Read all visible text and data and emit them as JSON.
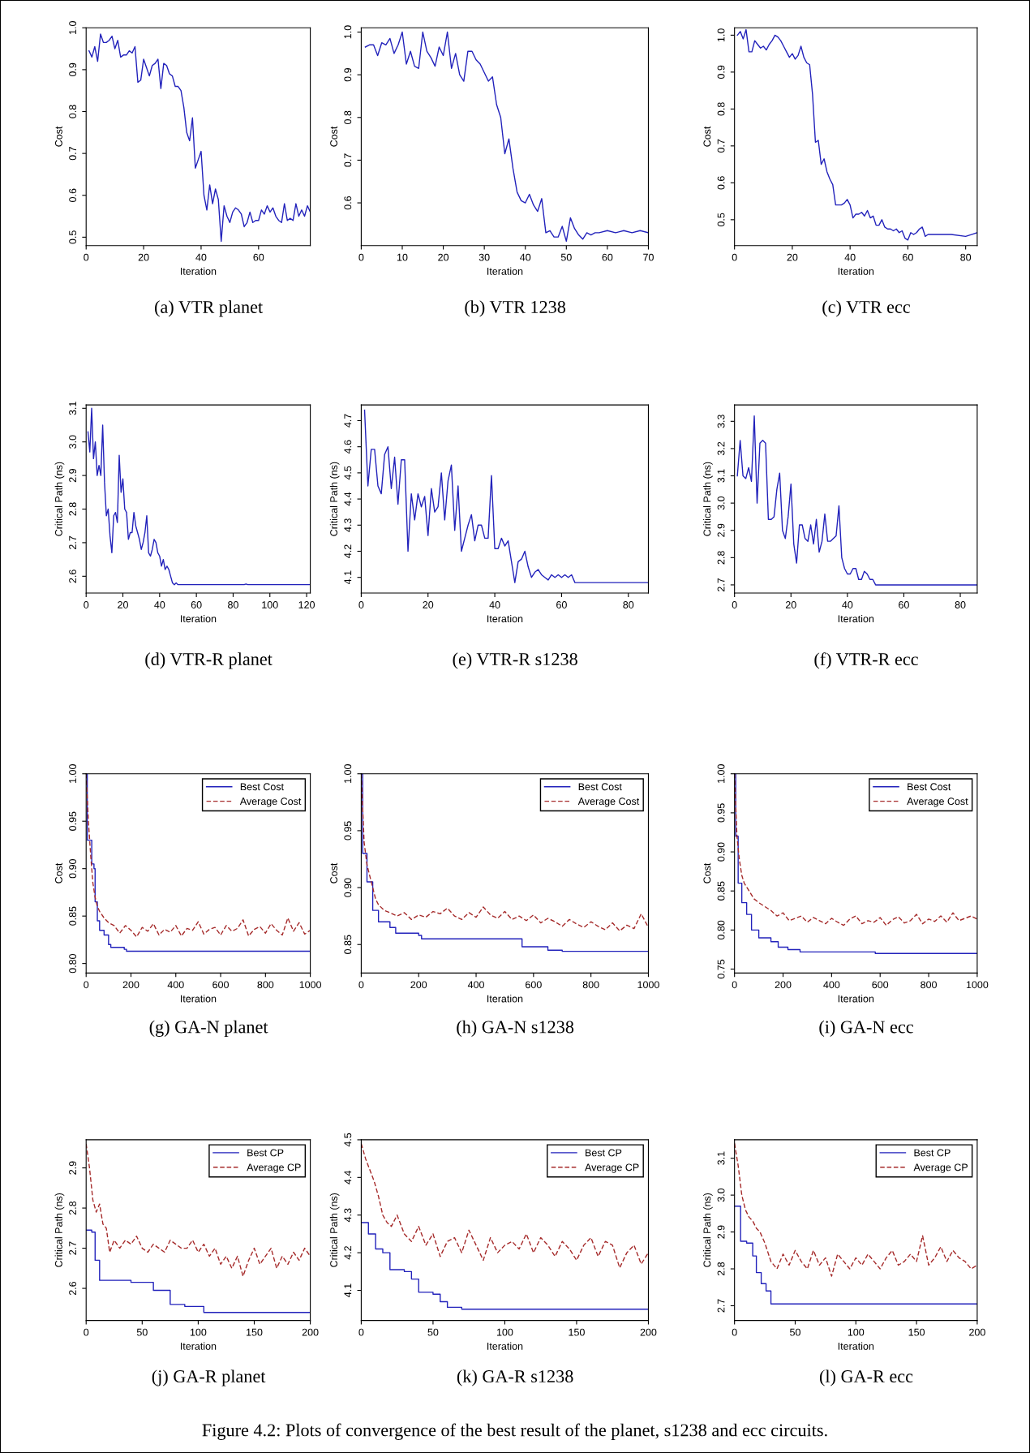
{
  "chart_data": [
    {
      "type": "line",
      "title": "(a) VTR planet",
      "xlabel": "Iteration",
      "ylabel": "Cost",
      "xlim": [
        0,
        78
      ],
      "ylim": [
        0.48,
        1.0
      ],
      "xticks": [
        0,
        20,
        40,
        60
      ],
      "yticks": [
        0.5,
        0.6,
        0.7,
        0.8,
        0.9,
        {
          "value": 1,
          "label": "1.0"
        }
      ],
      "series": [
        {
          "color": "#2222bb",
          "x": [
            1,
            2,
            3,
            4,
            5,
            6,
            7,
            8,
            9,
            10,
            11,
            12,
            13,
            14,
            15,
            16,
            17,
            18,
            19,
            20,
            21,
            22,
            23,
            24,
            25,
            26,
            27,
            28,
            29,
            30,
            31,
            32,
            33,
            34,
            35,
            36,
            37,
            38,
            39,
            40,
            41,
            42,
            43,
            44,
            45,
            46,
            47,
            48,
            49,
            50,
            51,
            52,
            53,
            54,
            55,
            56,
            57,
            58,
            59,
            60,
            61,
            62,
            63,
            64,
            65,
            66,
            67,
            68,
            69,
            70,
            71,
            72,
            73,
            74,
            75,
            76,
            77,
            78
          ],
          "values": [
            0.945,
            0.93,
            0.955,
            0.92,
            0.985,
            0.965,
            0.965,
            0.97,
            0.98,
            0.95,
            0.97,
            0.93,
            0.935,
            0.935,
            0.945,
            0.94,
            0.955,
            0.87,
            0.875,
            0.925,
            0.905,
            0.885,
            0.91,
            0.915,
            0.925,
            0.855,
            0.915,
            0.91,
            0.89,
            0.885,
            0.86,
            0.86,
            0.85,
            0.81,
            0.75,
            0.73,
            0.785,
            0.665,
            0.685,
            0.705,
            0.6,
            0.565,
            0.625,
            0.58,
            0.615,
            0.59,
            0.49,
            0.575,
            0.55,
            0.535,
            0.56,
            0.57,
            0.565,
            0.555,
            0.525,
            0.535,
            0.56,
            0.535,
            0.54,
            0.54,
            0.565,
            0.555,
            0.575,
            0.56,
            0.57,
            0.55,
            0.54,
            0.535,
            0.58,
            0.54,
            0.545,
            0.54,
            0.58,
            0.55,
            0.565,
            0.55,
            0.575,
            0.56
          ]
        }
      ]
    },
    {
      "type": "line",
      "title": "(b) VTR 1238",
      "xlabel": "Iteration",
      "ylabel": "Cost",
      "xlim": [
        0,
        70
      ],
      "ylim": [
        0.5,
        1.01
      ],
      "xticks": [
        0,
        10,
        20,
        30,
        40,
        50,
        60,
        70
      ],
      "yticks": [
        0.6,
        0.7,
        0.8,
        0.9,
        {
          "value": 1,
          "label": "1.0"
        }
      ],
      "series": [
        {
          "color": "#2222bb",
          "x": [
            1,
            2,
            3,
            4,
            5,
            6,
            7,
            8,
            9,
            10,
            11,
            12,
            13,
            14,
            15,
            16,
            17,
            18,
            19,
            20,
            21,
            22,
            23,
            24,
            25,
            26,
            27,
            28,
            29,
            30,
            31,
            32,
            33,
            34,
            35,
            36,
            37,
            38,
            39,
            40,
            41,
            42,
            43,
            44,
            45,
            46,
            47,
            48,
            49,
            50,
            51,
            52,
            53,
            54,
            55,
            56,
            57,
            58,
            60,
            62,
            64,
            66,
            68,
            70
          ],
          "values": [
            0.965,
            0.97,
            0.97,
            0.945,
            0.975,
            0.97,
            0.985,
            0.95,
            0.97,
            1.0,
            0.925,
            0.955,
            0.92,
            0.915,
            1.0,
            0.955,
            0.94,
            0.92,
            0.965,
            0.945,
            1.0,
            0.915,
            0.95,
            0.9,
            0.885,
            0.955,
            0.955,
            0.935,
            0.925,
            0.905,
            0.885,
            0.895,
            0.83,
            0.8,
            0.715,
            0.75,
            0.68,
            0.625,
            0.605,
            0.6,
            0.62,
            0.595,
            0.58,
            0.61,
            0.53,
            0.535,
            0.52,
            0.52,
            0.545,
            0.51,
            0.565,
            0.54,
            0.525,
            0.515,
            0.53,
            0.525,
            0.53,
            0.53,
            0.535,
            0.53,
            0.535,
            0.53,
            0.535,
            0.53
          ]
        }
      ]
    },
    {
      "type": "line",
      "title": "(c) VTR ecc",
      "xlabel": "Iteration",
      "ylabel": "Cost",
      "xlim": [
        0,
        84
      ],
      "ylim": [
        0.43,
        1.02
      ],
      "xticks": [
        0,
        20,
        40,
        60,
        80
      ],
      "yticks": [
        0.5,
        0.6,
        0.7,
        0.8,
        0.9,
        {
          "value": 1,
          "label": "1.0"
        }
      ],
      "series": [
        {
          "color": "#2222bb",
          "x": [
            1,
            2,
            3,
            4,
            5,
            6,
            7,
            8,
            9,
            10,
            11,
            12,
            13,
            14,
            15,
            16,
            17,
            18,
            19,
            20,
            21,
            22,
            23,
            24,
            25,
            26,
            27,
            28,
            29,
            30,
            31,
            32,
            33,
            34,
            35,
            36,
            37,
            38,
            39,
            40,
            41,
            42,
            43,
            44,
            45,
            46,
            47,
            48,
            49,
            50,
            51,
            52,
            53,
            54,
            55,
            56,
            57,
            58,
            59,
            60,
            61,
            62,
            63,
            64,
            65,
            66,
            67,
            70,
            75,
            80,
            82,
            84
          ],
          "values": [
            1.0,
            1.01,
            0.99,
            1.015,
            0.955,
            0.955,
            0.985,
            0.975,
            0.965,
            0.97,
            0.96,
            0.975,
            0.985,
            1.0,
            0.995,
            0.985,
            0.97,
            0.955,
            0.94,
            0.95,
            0.935,
            0.945,
            0.97,
            0.94,
            0.925,
            0.92,
            0.84,
            0.71,
            0.715,
            0.65,
            0.665,
            0.63,
            0.61,
            0.595,
            0.54,
            0.54,
            0.54,
            0.545,
            0.555,
            0.54,
            0.505,
            0.515,
            0.515,
            0.52,
            0.51,
            0.525,
            0.505,
            0.51,
            0.485,
            0.485,
            0.5,
            0.48,
            0.475,
            0.475,
            0.47,
            0.475,
            0.465,
            0.47,
            0.45,
            0.445,
            0.465,
            0.46,
            0.465,
            0.475,
            0.48,
            0.455,
            0.46,
            0.46,
            0.46,
            0.455,
            0.46,
            0.465
          ]
        }
      ]
    },
    {
      "type": "line",
      "title": "(d) VTR-R planet",
      "xlabel": "Iteration",
      "ylabel": "Critical Path (ns)",
      "xlim": [
        0,
        122
      ],
      "ylim": [
        2.55,
        3.11
      ],
      "xticks": [
        0,
        20,
        40,
        60,
        80,
        100,
        120
      ],
      "yticks": [
        2.6,
        2.7,
        2.8,
        2.9,
        {
          "value": 3,
          "label": "3.0"
        },
        3.1
      ],
      "series": [
        {
          "color": "#2222bb",
          "x": [
            1,
            2,
            3,
            4,
            5,
            6,
            7,
            8,
            9,
            10,
            11,
            12,
            13,
            14,
            15,
            16,
            17,
            18,
            19,
            20,
            21,
            22,
            23,
            24,
            25,
            26,
            27,
            28,
            29,
            30,
            31,
            32,
            33,
            34,
            35,
            36,
            37,
            38,
            39,
            40,
            41,
            42,
            43,
            44,
            45,
            46,
            47,
            48,
            49,
            50,
            52,
            60,
            86,
            87,
            88,
            100,
            122
          ],
          "values": [
            3.03,
            2.97,
            3.1,
            2.95,
            3.0,
            2.9,
            2.93,
            2.9,
            3.05,
            2.88,
            2.78,
            2.8,
            2.72,
            2.67,
            2.78,
            2.79,
            2.76,
            2.96,
            2.85,
            2.89,
            2.8,
            2.79,
            2.71,
            2.73,
            2.73,
            2.79,
            2.75,
            2.73,
            2.71,
            2.68,
            2.7,
            2.73,
            2.78,
            2.67,
            2.66,
            2.68,
            2.71,
            2.7,
            2.67,
            2.66,
            2.63,
            2.65,
            2.62,
            2.63,
            2.62,
            2.6,
            2.58,
            2.575,
            2.58,
            2.575,
            2.575,
            2.575,
            2.575,
            2.577,
            2.575,
            2.575,
            2.575
          ]
        }
      ]
    },
    {
      "type": "line",
      "title": "(e) VTR-R s1238",
      "xlabel": "Iteration",
      "ylabel": "Critical Path (ns)",
      "xlim": [
        0,
        86
      ],
      "ylim": [
        4.04,
        4.76
      ],
      "xticks": [
        0,
        20,
        40,
        60,
        80
      ],
      "yticks": [
        4.1,
        4.2,
        4.3,
        4.4,
        4.5,
        4.6,
        4.7
      ],
      "series": [
        {
          "color": "#2222bb",
          "x": [
            1,
            2,
            3,
            4,
            5,
            6,
            7,
            8,
            9,
            10,
            11,
            12,
            13,
            14,
            15,
            16,
            17,
            18,
            19,
            20,
            21,
            22,
            23,
            24,
            25,
            26,
            27,
            28,
            29,
            30,
            31,
            32,
            33,
            34,
            35,
            36,
            37,
            38,
            39,
            40,
            41,
            42,
            43,
            44,
            45,
            46,
            47,
            48,
            49,
            50,
            51,
            52,
            53,
            54,
            55,
            56,
            57,
            58,
            59,
            60,
            61,
            62,
            63,
            64,
            66,
            86
          ],
          "values": [
            4.74,
            4.45,
            4.59,
            4.59,
            4.45,
            4.42,
            4.57,
            4.6,
            4.44,
            4.56,
            4.38,
            4.55,
            4.55,
            4.2,
            4.42,
            4.32,
            4.42,
            4.37,
            4.41,
            4.26,
            4.44,
            4.35,
            4.37,
            4.5,
            4.32,
            4.47,
            4.53,
            4.28,
            4.45,
            4.2,
            4.25,
            4.3,
            4.34,
            4.24,
            4.3,
            4.3,
            4.25,
            4.25,
            4.49,
            4.21,
            4.21,
            4.25,
            4.22,
            4.24,
            4.16,
            4.08,
            4.16,
            4.17,
            4.2,
            4.14,
            4.1,
            4.12,
            4.13,
            4.11,
            4.1,
            4.09,
            4.11,
            4.1,
            4.11,
            4.1,
            4.11,
            4.1,
            4.11,
            4.08,
            4.08,
            4.08
          ]
        }
      ]
    },
    {
      "type": "line",
      "title": "(f) VTR-R ecc",
      "xlabel": "Iteration",
      "ylabel": "Critical Path (ns)",
      "xlim": [
        0,
        86
      ],
      "ylim": [
        2.67,
        3.36
      ],
      "xticks": [
        0,
        20,
        40,
        60,
        80
      ],
      "yticks": [
        2.7,
        2.8,
        2.9,
        {
          "value": 3,
          "label": "3.0"
        },
        3.1,
        3.2,
        3.3
      ],
      "series": [
        {
          "color": "#2222bb",
          "x": [
            1,
            2,
            3,
            4,
            5,
            6,
            7,
            8,
            9,
            10,
            11,
            12,
            13,
            14,
            15,
            16,
            17,
            18,
            19,
            20,
            21,
            22,
            23,
            24,
            25,
            26,
            27,
            28,
            29,
            30,
            31,
            32,
            33,
            34,
            35,
            36,
            37,
            38,
            39,
            40,
            41,
            42,
            43,
            44,
            45,
            46,
            47,
            48,
            49,
            50,
            60,
            86
          ],
          "values": [
            3.1,
            3.23,
            3.1,
            3.09,
            3.13,
            3.08,
            3.32,
            3.0,
            3.22,
            3.23,
            3.22,
            2.94,
            2.94,
            2.95,
            3.05,
            3.11,
            2.9,
            2.87,
            2.95,
            3.07,
            2.85,
            2.78,
            2.92,
            2.92,
            2.87,
            2.86,
            2.92,
            2.85,
            2.94,
            2.82,
            2.86,
            2.96,
            2.86,
            2.86,
            2.87,
            2.88,
            2.99,
            2.8,
            2.76,
            2.74,
            2.74,
            2.76,
            2.76,
            2.72,
            2.72,
            2.75,
            2.74,
            2.72,
            2.72,
            2.7,
            2.7,
            2.7
          ]
        }
      ]
    },
    {
      "type": "line",
      "title": "(g) GA-N planet",
      "xlabel": "Iteration",
      "ylabel": "Cost",
      "xlim": [
        0,
        1000
      ],
      "ylim": [
        0.79,
        1.0
      ],
      "xticks": [
        0,
        200,
        400,
        600,
        800,
        1000
      ],
      "yticks": [
        {
          "value": 0.8,
          "label": "0.80"
        },
        0.85,
        {
          "value": 0.9,
          "label": "0.90"
        },
        0.95,
        {
          "value": 1,
          "label": "1.00"
        }
      ],
      "legend": "top right",
      "series": [
        {
          "name": "Best Cost",
          "type": "step",
          "color": "#2222bb",
          "line_style": "solid",
          "x": [
            0,
            5,
            20,
            25,
            35,
            40,
            50,
            60,
            80,
            100,
            110,
            170,
            180,
            1000
          ],
          "values": [
            1.0,
            0.93,
            0.93,
            0.905,
            0.9,
            0.865,
            0.845,
            0.835,
            0.83,
            0.82,
            0.817,
            0.815,
            0.813,
            0.813
          ]
        },
        {
          "name": "Average Cost",
          "type": "line",
          "color": "#a52a2a",
          "line_style": "dashed",
          "x": [
            0,
            10,
            20,
            30,
            40,
            50,
            60,
            80,
            100,
            125,
            150,
            175,
            200,
            225,
            250,
            275,
            300,
            325,
            350,
            375,
            400,
            425,
            450,
            475,
            500,
            525,
            550,
            575,
            600,
            625,
            650,
            675,
            700,
            725,
            750,
            775,
            800,
            825,
            850,
            875,
            900,
            925,
            950,
            975,
            1000
          ],
          "values": [
            1.0,
            0.95,
            0.915,
            0.885,
            0.87,
            0.86,
            0.855,
            0.848,
            0.843,
            0.84,
            0.832,
            0.84,
            0.835,
            0.828,
            0.838,
            0.834,
            0.842,
            0.83,
            0.836,
            0.833,
            0.84,
            0.829,
            0.837,
            0.835,
            0.844,
            0.831,
            0.836,
            0.838,
            0.83,
            0.84,
            0.834,
            0.837,
            0.846,
            0.829,
            0.836,
            0.839,
            0.832,
            0.842,
            0.835,
            0.83,
            0.848,
            0.834,
            0.843,
            0.831,
            0.835
          ]
        }
      ]
    },
    {
      "type": "line",
      "title": "(h) GA-N s1238",
      "xlabel": "Iteration",
      "ylabel": "Cost",
      "xlim": [
        0,
        1000
      ],
      "ylim": [
        0.825,
        1.0
      ],
      "xticks": [
        0,
        200,
        400,
        600,
        800,
        1000
      ],
      "yticks": [
        0.85,
        {
          "value": 0.9,
          "label": "0.90"
        },
        0.95,
        {
          "value": 1,
          "label": "1.00"
        }
      ],
      "legend": "top right",
      "series": [
        {
          "name": "Best Cost",
          "type": "step",
          "color": "#2222bb",
          "line_style": "solid",
          "x": [
            0,
            5,
            20,
            40,
            60,
            100,
            120,
            200,
            210,
            550,
            560,
            650,
            700,
            1000
          ],
          "values": [
            1.0,
            0.93,
            0.905,
            0.88,
            0.87,
            0.865,
            0.86,
            0.858,
            0.855,
            0.855,
            0.848,
            0.845,
            0.844,
            0.844
          ]
        },
        {
          "name": "Average Cost",
          "type": "line",
          "color": "#a52a2a",
          "line_style": "dashed",
          "x": [
            0,
            10,
            20,
            30,
            40,
            50,
            60,
            80,
            100,
            125,
            150,
            175,
            200,
            225,
            250,
            275,
            300,
            325,
            350,
            375,
            400,
            425,
            450,
            475,
            500,
            525,
            550,
            575,
            600,
            625,
            650,
            675,
            700,
            725,
            750,
            775,
            800,
            825,
            850,
            875,
            900,
            925,
            950,
            975,
            1000
          ],
          "values": [
            1.0,
            0.94,
            0.92,
            0.91,
            0.9,
            0.89,
            0.885,
            0.88,
            0.878,
            0.875,
            0.878,
            0.872,
            0.876,
            0.874,
            0.879,
            0.877,
            0.882,
            0.875,
            0.872,
            0.878,
            0.874,
            0.883,
            0.876,
            0.873,
            0.879,
            0.872,
            0.875,
            0.871,
            0.876,
            0.869,
            0.873,
            0.87,
            0.866,
            0.872,
            0.868,
            0.865,
            0.87,
            0.866,
            0.863,
            0.869,
            0.862,
            0.867,
            0.864,
            0.877,
            0.865
          ]
        }
      ]
    },
    {
      "type": "line",
      "title": "(i) GA-N ecc",
      "xlabel": "Iteration",
      "ylabel": "Cost",
      "xlim": [
        0,
        1000
      ],
      "ylim": [
        0.745,
        1.0
      ],
      "xticks": [
        0,
        200,
        400,
        600,
        800,
        1000
      ],
      "yticks": [
        0.75,
        {
          "value": 0.8,
          "label": "0.80"
        },
        0.85,
        {
          "value": 0.9,
          "label": "0.90"
        },
        0.95,
        {
          "value": 1,
          "label": "1.00"
        }
      ],
      "legend": "top right",
      "series": [
        {
          "name": "Best Cost",
          "type": "step",
          "color": "#2222bb",
          "line_style": "solid",
          "x": [
            0,
            5,
            15,
            30,
            50,
            70,
            100,
            150,
            180,
            220,
            270,
            580,
            1000
          ],
          "values": [
            1.0,
            0.92,
            0.86,
            0.835,
            0.82,
            0.8,
            0.79,
            0.785,
            0.778,
            0.775,
            0.772,
            0.77,
            0.77
          ]
        },
        {
          "name": "Average Cost",
          "type": "line",
          "color": "#a52a2a",
          "line_style": "dashed",
          "x": [
            0,
            10,
            20,
            30,
            40,
            50,
            60,
            80,
            100,
            125,
            150,
            175,
            200,
            225,
            250,
            275,
            300,
            325,
            350,
            375,
            400,
            425,
            450,
            475,
            500,
            525,
            550,
            575,
            600,
            625,
            650,
            675,
            700,
            725,
            750,
            775,
            800,
            825,
            850,
            875,
            900,
            925,
            950,
            975,
            1000
          ],
          "values": [
            1.0,
            0.92,
            0.89,
            0.87,
            0.86,
            0.855,
            0.85,
            0.84,
            0.835,
            0.83,
            0.825,
            0.818,
            0.822,
            0.812,
            0.815,
            0.818,
            0.81,
            0.816,
            0.812,
            0.808,
            0.815,
            0.81,
            0.806,
            0.814,
            0.818,
            0.808,
            0.812,
            0.81,
            0.816,
            0.806,
            0.813,
            0.817,
            0.809,
            0.812,
            0.82,
            0.808,
            0.814,
            0.811,
            0.818,
            0.81,
            0.822,
            0.812,
            0.815,
            0.818,
            0.814
          ]
        }
      ]
    },
    {
      "type": "line",
      "title": "(j) GA-R planet",
      "xlabel": "Iteration",
      "ylabel": "Critical Path (ns)",
      "xlim": [
        0,
        200
      ],
      "ylim": [
        2.52,
        2.97
      ],
      "xticks": [
        0,
        50,
        100,
        150,
        200
      ],
      "yticks": [
        2.6,
        2.7,
        2.8,
        2.9
      ],
      "legend": "top right",
      "series": [
        {
          "name": "Best CP",
          "type": "step",
          "color": "#2222bb",
          "line_style": "solid",
          "x": [
            0,
            5,
            8,
            12,
            40,
            60,
            75,
            88,
            105,
            200
          ],
          "values": [
            2.745,
            2.74,
            2.67,
            2.62,
            2.615,
            2.595,
            2.56,
            2.555,
            2.54,
            2.54
          ]
        },
        {
          "name": "Average CP",
          "type": "line",
          "color": "#a52a2a",
          "line_style": "dashed",
          "x": [
            0,
            3,
            6,
            9,
            12,
            15,
            18,
            21,
            25,
            30,
            35,
            40,
            45,
            50,
            55,
            60,
            65,
            70,
            75,
            80,
            85,
            90,
            95,
            100,
            105,
            110,
            115,
            120,
            125,
            130,
            135,
            140,
            145,
            150,
            155,
            160,
            165,
            170,
            175,
            180,
            185,
            190,
            195,
            200
          ],
          "values": [
            2.96,
            2.9,
            2.82,
            2.79,
            2.81,
            2.76,
            2.75,
            2.69,
            2.72,
            2.7,
            2.72,
            2.71,
            2.73,
            2.7,
            2.69,
            2.71,
            2.7,
            2.69,
            2.72,
            2.71,
            2.7,
            2.7,
            2.72,
            2.69,
            2.71,
            2.68,
            2.7,
            2.66,
            2.68,
            2.65,
            2.68,
            2.63,
            2.67,
            2.7,
            2.66,
            2.68,
            2.7,
            2.65,
            2.68,
            2.66,
            2.69,
            2.67,
            2.7,
            2.68
          ]
        }
      ]
    },
    {
      "type": "line",
      "title": "(k) GA-R s1238",
      "xlabel": "Iteration",
      "ylabel": "Critical Path (ns)",
      "xlim": [
        0,
        200
      ],
      "ylim": [
        4.02,
        4.5
      ],
      "xticks": [
        0,
        50,
        100,
        150,
        200
      ],
      "yticks": [
        4.1,
        4.2,
        4.3,
        4.4,
        4.5
      ],
      "legend": "top right",
      "series": [
        {
          "name": "Best CP",
          "type": "step",
          "color": "#2222bb",
          "line_style": "solid",
          "x": [
            0,
            5,
            10,
            15,
            20,
            30,
            35,
            40,
            50,
            55,
            60,
            70,
            200
          ],
          "values": [
            4.28,
            4.25,
            4.21,
            4.2,
            4.155,
            4.15,
            4.13,
            4.095,
            4.09,
            4.07,
            4.055,
            4.05,
            4.05
          ]
        },
        {
          "name": "Average CP",
          "type": "line",
          "color": "#a52a2a",
          "line_style": "dashed",
          "x": [
            0,
            3,
            6,
            9,
            12,
            15,
            18,
            21,
            25,
            30,
            35,
            40,
            45,
            50,
            55,
            60,
            65,
            70,
            75,
            80,
            85,
            90,
            95,
            100,
            105,
            110,
            115,
            120,
            125,
            130,
            135,
            140,
            145,
            150,
            155,
            160,
            165,
            170,
            175,
            180,
            185,
            190,
            195,
            200
          ],
          "values": [
            4.49,
            4.45,
            4.42,
            4.39,
            4.35,
            4.3,
            4.28,
            4.27,
            4.3,
            4.25,
            4.23,
            4.27,
            4.22,
            4.25,
            4.19,
            4.23,
            4.24,
            4.2,
            4.26,
            4.22,
            4.18,
            4.24,
            4.2,
            4.22,
            4.23,
            4.21,
            4.25,
            4.2,
            4.24,
            4.22,
            4.19,
            4.23,
            4.21,
            4.18,
            4.22,
            4.24,
            4.19,
            4.23,
            4.22,
            4.16,
            4.2,
            4.22,
            4.17,
            4.2
          ]
        }
      ]
    },
    {
      "type": "line",
      "title": "(l) GA-R ecc",
      "xlabel": "Iteration",
      "ylabel": "Critical Path (ns)",
      "xlim": [
        0,
        200
      ],
      "ylim": [
        2.66,
        3.15
      ],
      "xticks": [
        0,
        50,
        100,
        150,
        200
      ],
      "yticks": [
        2.7,
        2.8,
        2.9,
        {
          "value": 3,
          "label": "3.0"
        },
        3.1
      ],
      "legend": "top right",
      "annotations": [
        "Figure 4.2: Plots of convergence of the best result of the planet, s1238 and ecc circuits."
      ],
      "series": [
        {
          "name": "Best CP",
          "type": "step",
          "color": "#2222bb",
          "line_style": "solid",
          "x": [
            0,
            5,
            10,
            15,
            18,
            22,
            26,
            30,
            200
          ],
          "values": [
            2.97,
            2.875,
            2.87,
            2.835,
            2.79,
            2.76,
            2.74,
            2.705,
            2.705
          ]
        },
        {
          "name": "Average CP",
          "type": "line",
          "color": "#a52a2a",
          "line_style": "dashed",
          "x": [
            0,
            3,
            6,
            9,
            12,
            15,
            18,
            21,
            25,
            30,
            35,
            40,
            45,
            50,
            55,
            60,
            65,
            70,
            75,
            80,
            85,
            90,
            95,
            100,
            105,
            110,
            115,
            120,
            125,
            130,
            135,
            140,
            145,
            150,
            155,
            160,
            165,
            170,
            175,
            180,
            185,
            190,
            195,
            200
          ],
          "values": [
            3.14,
            3.08,
            3.0,
            2.96,
            2.94,
            2.93,
            2.91,
            2.9,
            2.87,
            2.82,
            2.8,
            2.84,
            2.81,
            2.85,
            2.82,
            2.8,
            2.85,
            2.81,
            2.83,
            2.78,
            2.84,
            2.82,
            2.8,
            2.83,
            2.81,
            2.84,
            2.82,
            2.8,
            2.83,
            2.85,
            2.81,
            2.82,
            2.84,
            2.82,
            2.89,
            2.81,
            2.83,
            2.86,
            2.82,
            2.85,
            2.83,
            2.82,
            2.8,
            2.81
          ]
        }
      ]
    }
  ]
}
